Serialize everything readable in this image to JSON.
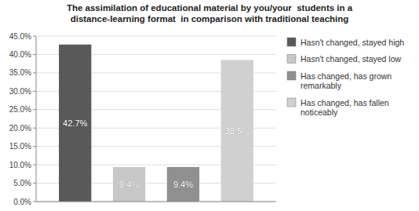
{
  "chart_data": {
    "type": "bar",
    "title": "The assimilation of educational material by you/your  students in a\ndistance-learning format  in comparison with traditional teaching",
    "categories": [
      null
    ],
    "series": [
      {
        "name": "Hasn't changed, stayed high",
        "color": "#595959",
        "values": [
          42.7
        ],
        "value_labels": [
          "42.7%"
        ]
      },
      {
        "name": "Hasn't changed, stayed low",
        "color": "#c8c8c8",
        "values": [
          9.4
        ],
        "value_labels": [
          "9.4%"
        ]
      },
      {
        "name": "Has changed, has grown\nremarkably",
        "color": "#909090",
        "values": [
          9.4
        ],
        "value_labels": [
          "9.4%"
        ]
      },
      {
        "name": "Has changed, has fallen\nnoticeably",
        "color": "#d0d0d0",
        "values": [
          38.5
        ],
        "value_labels": [
          "38.5%"
        ]
      }
    ],
    "ylim": [
      0,
      45
    ],
    "yticks": [
      {
        "value": 0.0,
        "label": "0.0%"
      },
      {
        "value": 5.0,
        "label": "5.0%"
      },
      {
        "value": 10.0,
        "label": "10.0%"
      },
      {
        "value": 15.0,
        "label": "15.0%"
      },
      {
        "value": 20.0,
        "label": "20.0%"
      },
      {
        "value": 25.0,
        "label": "25.0%"
      },
      {
        "value": 30.0,
        "label": "30.0%"
      },
      {
        "value": 35.0,
        "label": "35.0%"
      },
      {
        "value": 40.0,
        "label": "40.0%"
      },
      {
        "value": 45.0,
        "label": "45.0%"
      }
    ],
    "grid": true,
    "legend": "right",
    "data_labels": true,
    "tick_labels": "y"
  }
}
